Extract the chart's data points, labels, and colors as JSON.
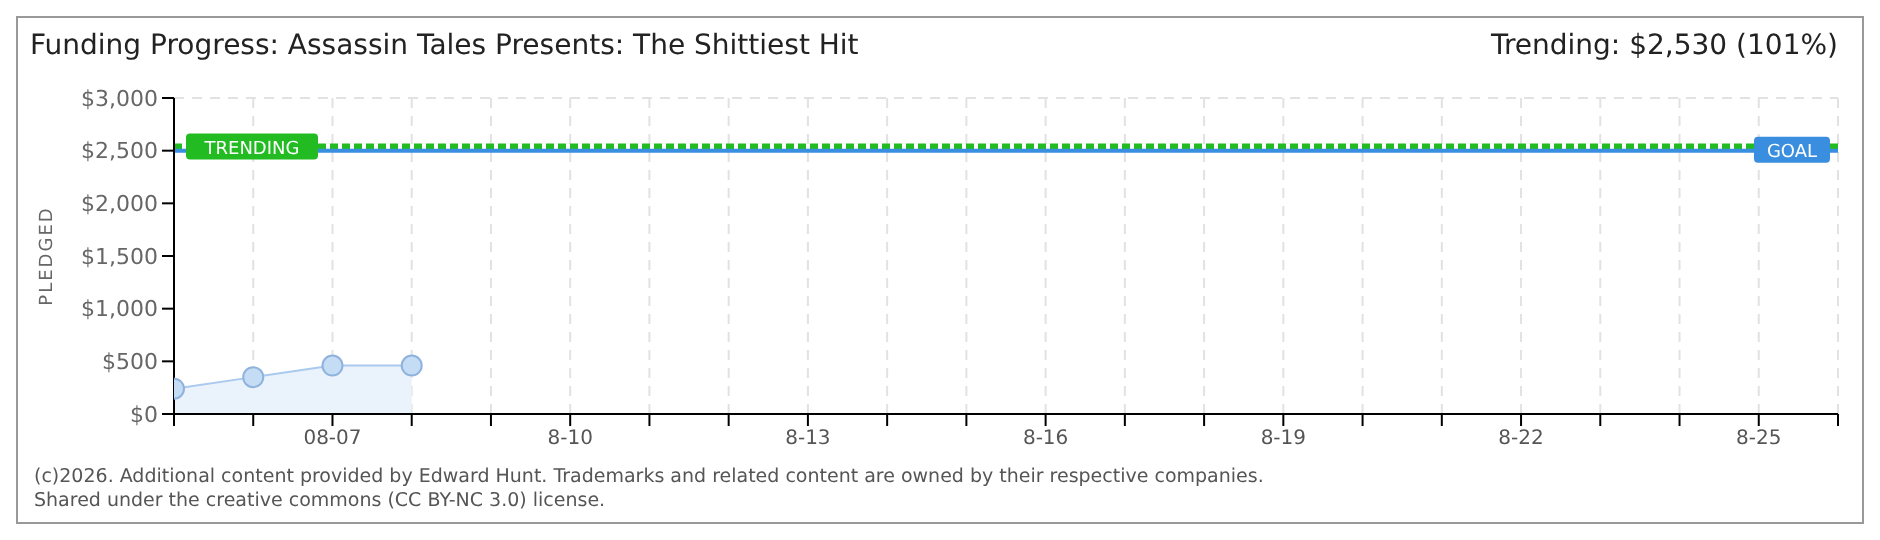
{
  "chart_data": {
    "type": "area",
    "title": "Funding Progress: Assassin Tales Presents: The Shittiest Hit",
    "ylabel": "PLEDGED",
    "annotations": [
      "Trending: $2,530 (101%)",
      "(c)2026. Additional content provided by Edward Hunt. Trademarks and related content are owned by their respective companies.",
      "Shared under the creative commons (CC BY-NC 3.0) license."
    ],
    "x": [
      "--08-05",
      "--08-06",
      "--08-07",
      "--08-08"
    ],
    "series": [
      {
        "color": "#a9c9ee",
        "values": [
          240,
          350,
          460,
          460
        ]
      }
    ],
    "xlim": [
      "--08-05",
      "--08-26"
    ],
    "xticks": [
      {
        "value": "--08-05",
        "label": null
      },
      {
        "value": "--08-06",
        "label": null
      },
      {
        "value": "--08-07",
        "label": "08-07"
      },
      {
        "value": "--08-08",
        "label": null
      },
      {
        "value": "--08-09",
        "label": null
      },
      {
        "value": "--08-10",
        "label": "8-10"
      },
      {
        "value": "--08-11",
        "label": null
      },
      {
        "value": "--08-12",
        "label": null
      },
      {
        "value": "--08-13",
        "label": "8-13"
      },
      {
        "value": "--08-14",
        "label": null
      },
      {
        "value": "--08-15",
        "label": null
      },
      {
        "value": "--08-16",
        "label": "8-16"
      },
      {
        "value": "--08-17",
        "label": null
      },
      {
        "value": "--08-18",
        "label": null
      },
      {
        "value": "--08-19",
        "label": "8-19"
      },
      {
        "value": "--08-20",
        "label": null
      },
      {
        "value": "--08-21",
        "label": null
      },
      {
        "value": "--08-22",
        "label": "8-22"
      },
      {
        "value": "--08-23",
        "label": null
      },
      {
        "value": "--08-24",
        "label": null
      },
      {
        "value": "--08-25",
        "label": "8-25"
      },
      {
        "value": "--08-26",
        "label": null
      }
    ],
    "ylim": [
      0,
      3000
    ],
    "yticks": [
      {
        "value": 0,
        "label": "$0"
      },
      {
        "value": 500,
        "label": "$500"
      },
      {
        "value": 1000,
        "label": "$1,000"
      },
      {
        "value": 1500,
        "label": "$1,500"
      },
      {
        "value": 2000,
        "label": "$2,000"
      },
      {
        "value": 2500,
        "label": "$2,500"
      },
      {
        "value": 3000,
        "label": "$3,000"
      }
    ],
    "ref_lines": [
      {
        "axis": "y",
        "value": 2500,
        "label": "GOAL",
        "color": "#3a8ee0",
        "line_style": "solid"
      },
      {
        "axis": "y",
        "value": 2530,
        "label": "TRENDING",
        "color": "#22bb22",
        "line_style": "dotted"
      }
    ],
    "grid": true,
    "marker": "circle"
  }
}
